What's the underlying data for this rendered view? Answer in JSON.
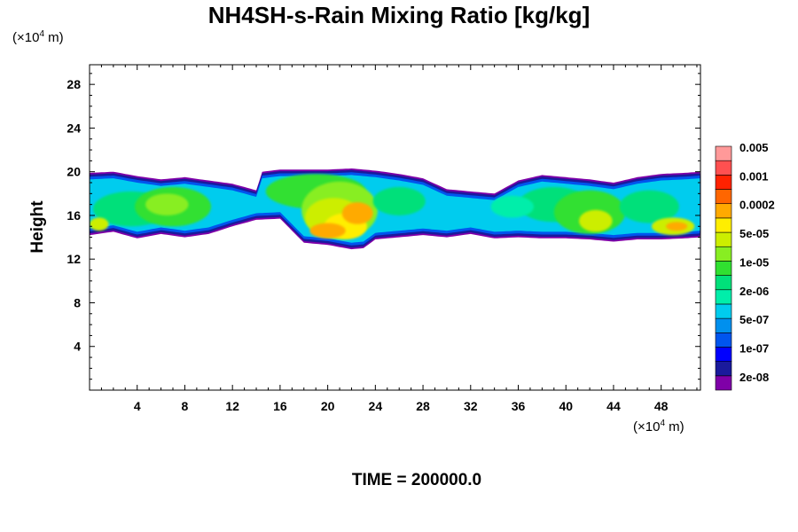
{
  "chart_data": {
    "type": "heatmap",
    "title": "NH4SH-s-Rain Mixing Ratio [kg/kg]",
    "xlabel": "",
    "ylabel": "Height",
    "x_unit_prefix": "(×10",
    "x_unit_exp": "4",
    "x_unit_suffix": " m)",
    "y_unit_prefix": "(×10",
    "y_unit_exp": "4",
    "y_unit_suffix": " m)",
    "xlim": [
      0,
      51.3
    ],
    "ylim": [
      0,
      29.8
    ],
    "x_ticks": [
      4,
      8,
      12,
      16,
      20,
      24,
      28,
      32,
      36,
      40,
      44,
      48
    ],
    "y_ticks": [
      4,
      8,
      12,
      16,
      20,
      24,
      28
    ],
    "colorbar": {
      "colors": [
        "#7f00a8",
        "#1a1a9c",
        "#0000ff",
        "#0055ee",
        "#0090ee",
        "#00ccee",
        "#00eeaa",
        "#00e07a",
        "#30e030",
        "#88ee22",
        "#ccee00",
        "#ffee00",
        "#ffaa00",
        "#ff6600",
        "#ff2200",
        "#ff5050",
        "#ff9999"
      ],
      "labels": [
        "2e-08",
        "1e-07",
        "5e-07",
        "2e-06",
        "1e-05",
        "5e-05",
        "0.0002",
        "0.001",
        "0.005"
      ]
    },
    "field_extent": {
      "x_range": [
        0,
        51.3
      ],
      "bottom": [
        [
          0,
          14.2
        ],
        [
          2,
          14.5
        ],
        [
          4,
          13.9
        ],
        [
          6,
          14.3
        ],
        [
          8,
          14.0
        ],
        [
          10,
          14.3
        ],
        [
          12,
          15.0
        ],
        [
          14,
          15.6
        ],
        [
          16,
          15.7
        ],
        [
          18,
          13.5
        ],
        [
          20,
          13.3
        ],
        [
          22,
          12.9
        ],
        [
          23,
          13.0
        ],
        [
          24,
          13.8
        ],
        [
          26,
          14.0
        ],
        [
          28,
          14.2
        ],
        [
          30,
          14.0
        ],
        [
          32,
          14.3
        ],
        [
          34,
          13.9
        ],
        [
          36,
          14.0
        ],
        [
          38,
          13.9
        ],
        [
          40,
          13.9
        ],
        [
          42,
          13.8
        ],
        [
          44,
          13.6
        ],
        [
          46,
          13.8
        ],
        [
          48,
          13.8
        ],
        [
          50,
          13.9
        ],
        [
          51.3,
          14.0
        ]
      ],
      "top": [
        [
          0,
          19.9
        ],
        [
          2,
          20.0
        ],
        [
          4,
          19.6
        ],
        [
          6,
          19.3
        ],
        [
          8,
          19.5
        ],
        [
          10,
          19.2
        ],
        [
          12,
          18.9
        ],
        [
          14,
          18.3
        ],
        [
          14.5,
          20.0
        ],
        [
          16,
          20.2
        ],
        [
          18,
          20.2
        ],
        [
          20,
          20.2
        ],
        [
          22,
          20.3
        ],
        [
          24,
          20.1
        ],
        [
          26,
          19.8
        ],
        [
          28,
          19.4
        ],
        [
          30,
          18.4
        ],
        [
          32,
          18.2
        ],
        [
          34,
          18.0
        ],
        [
          35,
          18.6
        ],
        [
          36,
          19.2
        ],
        [
          38,
          19.7
        ],
        [
          40,
          19.5
        ],
        [
          42,
          19.3
        ],
        [
          44,
          19.0
        ],
        [
          46,
          19.5
        ],
        [
          48,
          19.8
        ],
        [
          50,
          19.9
        ],
        [
          51.3,
          20.0
        ]
      ]
    }
  },
  "time_label": "TIME = 200000.0"
}
